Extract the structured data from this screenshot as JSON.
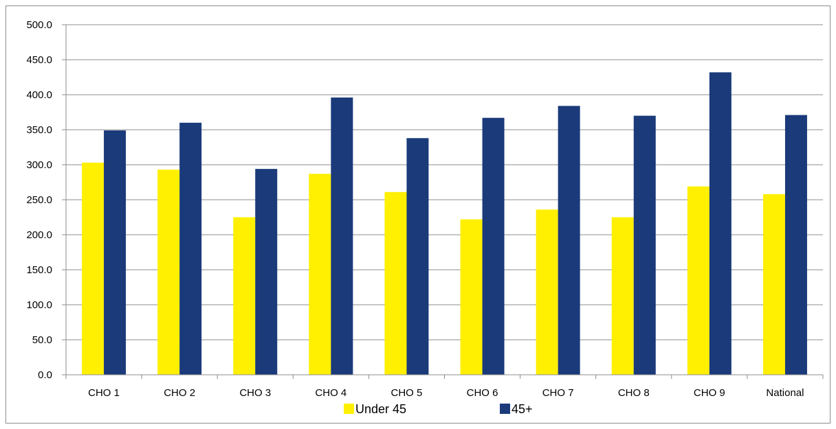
{
  "chart_data": {
    "type": "bar",
    "categories": [
      "CHO 1",
      "CHO 2",
      "CHO 3",
      "CHO 4",
      "CHO 5",
      "CHO 6",
      "CHO 7",
      "CHO 8",
      "CHO 9",
      "National"
    ],
    "series": [
      {
        "name": "Under 45",
        "color": "#ffef00",
        "values": [
          303,
          293,
          225,
          287,
          261,
          222,
          236,
          225,
          269,
          258
        ]
      },
      {
        "name": "45+",
        "color": "#1a3a7a",
        "values": [
          349,
          360,
          294,
          396,
          338,
          367,
          384,
          370,
          432,
          371
        ]
      }
    ],
    "ylim": [
      0,
      500
    ],
    "yticks": [
      "0.0",
      "50.0",
      "100.0",
      "150.0",
      "200.0",
      "250.0",
      "300.0",
      "350.0",
      "400.0",
      "450.0",
      "500.0"
    ],
    "grid": true,
    "legend": "bottom",
    "title": "",
    "xlabel": "",
    "ylabel": ""
  }
}
